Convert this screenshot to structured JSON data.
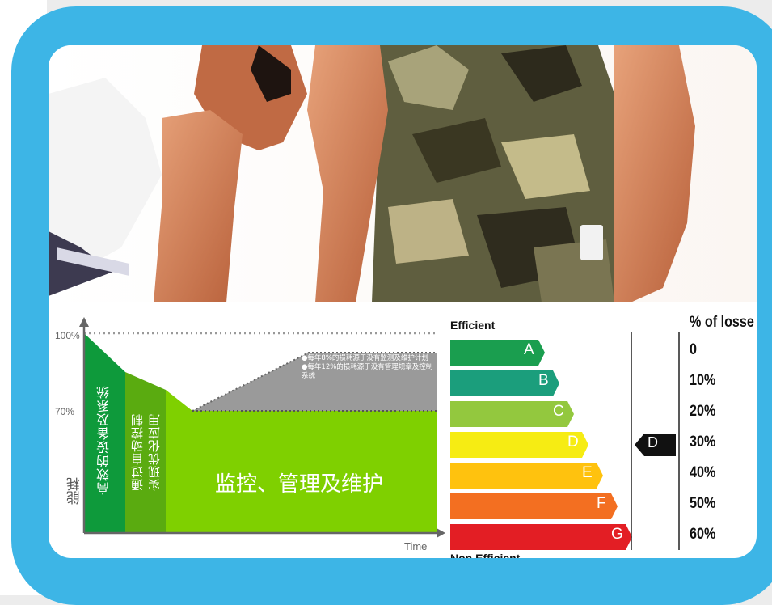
{
  "diagram": {
    "y_axis_label": "能耗",
    "x_axis_label": "Time",
    "tick_100": "100%",
    "tick_70": "70%",
    "band1_label": "高效的设备及系统",
    "band2_label_line1": "通过自动控制",
    "band2_label_line2": "实现优化应用",
    "main_label": "监控、管理及维护",
    "bullet1": "●每年8%的损耗源于没有监测及维护计划",
    "bullet2": "●每年12%的损耗源于没有管理规章及控制系统"
  },
  "energy_label": {
    "top_label": "Efficient",
    "bottom_label": "Non Efficient",
    "pct_header": "% of losse",
    "current_rating": "D",
    "ratings": [
      {
        "letter": "A",
        "color": "#1a9e4f",
        "loss": "0"
      },
      {
        "letter": "B",
        "color": "#1b9e7c",
        "loss": "10%"
      },
      {
        "letter": "C",
        "color": "#93c83e",
        "loss": "20%"
      },
      {
        "letter": "D",
        "color": "#f6ec13",
        "loss": "30%"
      },
      {
        "letter": "E",
        "color": "#ffc20e",
        "loss": "40%"
      },
      {
        "letter": "F",
        "color": "#f36f21",
        "loss": "50%"
      },
      {
        "letter": "G",
        "color": "#e31e24",
        "loss": "60%"
      }
    ]
  }
}
